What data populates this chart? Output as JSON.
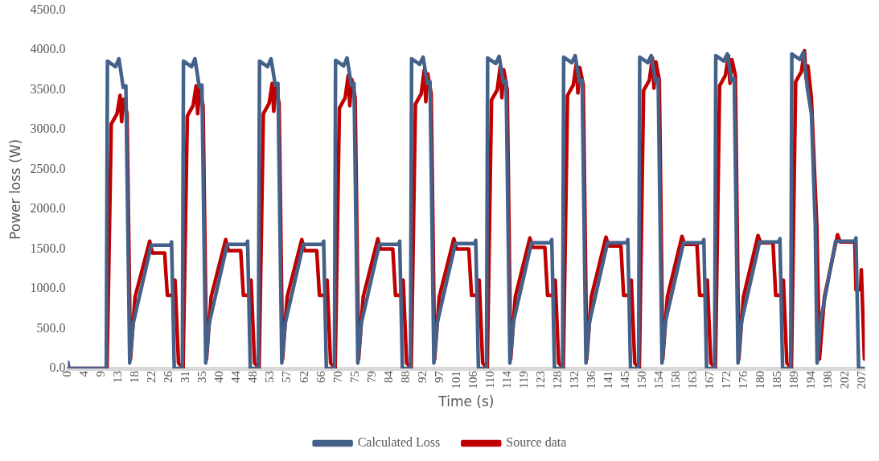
{
  "chart_data": {
    "type": "line",
    "xlabel": "Time (s)",
    "ylabel": "Power loss (W)",
    "legend": "bottom",
    "grid": false,
    "xlim": [
      0,
      207.5
    ],
    "ylim": [
      0,
      4500
    ],
    "xticks": [
      {
        "value": 0,
        "label": "0"
      },
      {
        "value": 4.4,
        "label": "4"
      },
      {
        "value": 8.8,
        "label": "9"
      },
      {
        "value": 13.2,
        "label": "13"
      },
      {
        "value": 17.6,
        "label": "18"
      },
      {
        "value": 22,
        "label": "22"
      },
      {
        "value": 26.4,
        "label": "26"
      },
      {
        "value": 30.8,
        "label": "31"
      },
      {
        "value": 35.2,
        "label": "35"
      },
      {
        "value": 39.6,
        "label": "40"
      },
      {
        "value": 44,
        "label": "44"
      },
      {
        "value": 48.4,
        "label": "48"
      },
      {
        "value": 52.8,
        "label": "53"
      },
      {
        "value": 57.2,
        "label": "57"
      },
      {
        "value": 61.6,
        "label": "62"
      },
      {
        "value": 66,
        "label": "66"
      },
      {
        "value": 70.4,
        "label": "70"
      },
      {
        "value": 74.8,
        "label": "75"
      },
      {
        "value": 79.2,
        "label": "79"
      },
      {
        "value": 83.6,
        "label": "84"
      },
      {
        "value": 88,
        "label": "88"
      },
      {
        "value": 92.4,
        "label": "92"
      },
      {
        "value": 96.8,
        "label": "97"
      },
      {
        "value": 101.2,
        "label": "101"
      },
      {
        "value": 105.6,
        "label": "106"
      },
      {
        "value": 110,
        "label": "110"
      },
      {
        "value": 114.4,
        "label": "114"
      },
      {
        "value": 118.8,
        "label": "119"
      },
      {
        "value": 123.2,
        "label": "123"
      },
      {
        "value": 127.6,
        "label": "128"
      },
      {
        "value": 132,
        "label": "132"
      },
      {
        "value": 136.4,
        "label": "136"
      },
      {
        "value": 140.8,
        "label": "141"
      },
      {
        "value": 145.2,
        "label": "145"
      },
      {
        "value": 149.6,
        "label": "150"
      },
      {
        "value": 154,
        "label": "154"
      },
      {
        "value": 158.4,
        "label": "158"
      },
      {
        "value": 162.8,
        "label": "163"
      },
      {
        "value": 167.2,
        "label": "167"
      },
      {
        "value": 171.6,
        "label": "172"
      },
      {
        "value": 176,
        "label": "176"
      },
      {
        "value": 180.4,
        "label": "180"
      },
      {
        "value": 184.8,
        "label": "185"
      },
      {
        "value": 189.2,
        "label": "189"
      },
      {
        "value": 193.6,
        "label": "194"
      },
      {
        "value": 198,
        "label": "198"
      },
      {
        "value": 202.4,
        "label": "202"
      },
      {
        "value": 206.8,
        "label": "207"
      }
    ],
    "yticks": [
      {
        "value": 0,
        "label": "0.0"
      },
      {
        "value": 500,
        "label": "500.0"
      },
      {
        "value": 1000,
        "label": "1000.0"
      },
      {
        "value": 1500,
        "label": "1500.0"
      },
      {
        "value": 2000,
        "label": "2000.0"
      },
      {
        "value": 2500,
        "label": "2500.0"
      },
      {
        "value": 3000,
        "label": "3000.0"
      },
      {
        "value": 3500,
        "label": "3500.0"
      },
      {
        "value": 4000,
        "label": "4000.0"
      },
      {
        "value": 4500,
        "label": "4500.0"
      }
    ],
    "series": [
      {
        "name": "Calculated Loss",
        "color": "#44618a",
        "x": [
          0,
          0.3,
          10.0,
          10.3,
          12.4,
          13.3,
          14.4,
          15.1,
          16.1,
          17.0,
          21.7,
          26.7,
          27.0,
          27.7,
          29.8,
          30.1,
          32.2,
          33.1,
          34.2,
          34.9,
          35.9,
          36.8,
          41.5,
          46.5,
          46.8,
          47.5,
          49.6,
          49.9,
          52.0,
          52.9,
          54.0,
          54.7,
          55.7,
          56.6,
          61.3,
          66.3,
          66.6,
          67.3,
          69.4,
          69.7,
          71.8,
          72.7,
          73.8,
          74.5,
          75.5,
          76.4,
          81.1,
          86.1,
          86.4,
          87.1,
          89.2,
          89.5,
          91.6,
          92.5,
          93.6,
          94.3,
          95.3,
          96.2,
          100.9,
          105.9,
          106.2,
          106.9,
          109.0,
          109.3,
          111.4,
          112.3,
          113.4,
          114.1,
          115.1,
          116.0,
          120.7,
          125.7,
          126.0,
          126.7,
          128.8,
          129.1,
          131.2,
          132.1,
          133.2,
          133.9,
          134.9,
          135.8,
          140.5,
          145.5,
          145.8,
          146.5,
          148.6,
          148.9,
          151.0,
          151.9,
          153.0,
          153.7,
          154.7,
          155.6,
          160.3,
          165.3,
          165.6,
          166.3,
          168.4,
          168.7,
          170.8,
          171.7,
          172.8,
          173.5,
          174.5,
          175.4,
          180.1,
          185.1,
          185.4,
          186.1,
          188.2,
          188.5,
          190.6,
          191.5,
          192.6,
          193.6,
          194.6,
          195.1,
          196.0,
          199.9,
          204.9,
          205.2,
          205.9,
          207.5
        ],
        "values": [
          80,
          0,
          0,
          3860,
          3790,
          3890,
          3530,
          3550,
          70,
          565,
          1550,
          1550,
          1590,
          0,
          0,
          3860,
          3790,
          3890,
          3540,
          3560,
          70,
          570,
          1560,
          1560,
          1600,
          0,
          0,
          3860,
          3790,
          3890,
          3560,
          3580,
          70,
          570,
          1560,
          1560,
          1600,
          0,
          0,
          3870,
          3800,
          3900,
          3560,
          3580,
          70,
          570,
          1560,
          1560,
          1600,
          0,
          0,
          3890,
          3820,
          3910,
          3580,
          3600,
          70,
          580,
          1570,
          1570,
          1610,
          0,
          0,
          3900,
          3830,
          3920,
          3590,
          3610,
          70,
          580,
          1580,
          1580,
          1620,
          0,
          0,
          3910,
          3840,
          3930,
          3600,
          3620,
          70,
          580,
          1580,
          1580,
          1620,
          0,
          0,
          3910,
          3840,
          3930,
          3610,
          3630,
          70,
          590,
          1580,
          1580,
          1620,
          0,
          0,
          3930,
          3860,
          3950,
          3620,
          3640,
          70,
          590,
          1590,
          1590,
          1630,
          0,
          0,
          3950,
          3880,
          3970,
          3500,
          3200,
          1800,
          70,
          600,
          1600,
          1600,
          1640,
          0,
          0
        ]
      },
      {
        "name": "Source data",
        "color": "#c00000",
        "x": [
          0,
          10.2,
          11.3,
          12.8,
          13.6,
          14.0,
          14.5,
          15.4,
          16.3,
          17.5,
          21.3,
          22.0,
          25.2,
          25.9,
          27.4,
          27.9,
          28.8,
          30.0,
          31.1,
          32.6,
          33.4,
          33.8,
          34.3,
          35.2,
          36.1,
          37.3,
          41.1,
          41.8,
          45.0,
          45.7,
          47.2,
          47.7,
          48.6,
          49.8,
          50.9,
          52.4,
          53.2,
          53.6,
          54.1,
          55.0,
          55.9,
          57.1,
          60.9,
          61.6,
          64.8,
          65.5,
          67.0,
          67.5,
          68.4,
          69.6,
          70.7,
          72.2,
          73.0,
          73.4,
          73.9,
          74.8,
          75.7,
          76.9,
          80.7,
          81.4,
          84.6,
          85.3,
          86.8,
          87.3,
          88.2,
          89.4,
          90.5,
          92.0,
          92.8,
          93.2,
          93.7,
          94.6,
          95.5,
          96.7,
          100.5,
          101.2,
          104.4,
          105.1,
          106.6,
          107.1,
          108.0,
          109.2,
          110.3,
          111.8,
          112.6,
          113.0,
          113.5,
          114.4,
          115.3,
          116.5,
          120.3,
          121.0,
          124.2,
          124.9,
          126.4,
          126.9,
          127.8,
          129.0,
          130.1,
          131.6,
          132.4,
          132.8,
          133.3,
          134.2,
          135.1,
          136.3,
          140.1,
          140.8,
          144.0,
          144.7,
          146.2,
          146.7,
          147.6,
          148.8,
          149.9,
          151.4,
          152.2,
          152.6,
          153.1,
          154.0,
          154.9,
          156.1,
          159.9,
          160.6,
          163.8,
          164.5,
          166.0,
          166.5,
          167.4,
          168.6,
          169.7,
          171.2,
          172.0,
          172.4,
          172.9,
          173.8,
          174.7,
          175.9,
          179.7,
          180.4,
          183.6,
          184.3,
          185.8,
          186.3,
          187.2,
          188.4,
          189.5,
          191.0,
          191.8,
          192.2,
          192.7,
          193.6,
          195.0,
          195.7,
          197.0,
          200.4,
          201.1,
          204.9,
          205.2,
          206.4,
          206.6,
          207.4
        ],
        "values": [
          0,
          0,
          3070,
          3200,
          3430,
          3100,
          3380,
          3200,
          120,
          900,
          1600,
          1450,
          1450,
          920,
          920,
          1110,
          70,
          0,
          3170,
          3300,
          3550,
          3200,
          3500,
          3300,
          120,
          900,
          1620,
          1480,
          1480,
          920,
          920,
          1110,
          70,
          0,
          3200,
          3330,
          3580,
          3230,
          3530,
          3330,
          120,
          900,
          1620,
          1480,
          1480,
          920,
          920,
          1110,
          70,
          0,
          3270,
          3400,
          3680,
          3300,
          3630,
          3400,
          120,
          900,
          1630,
          1500,
          1500,
          920,
          920,
          1110,
          70,
          0,
          3320,
          3450,
          3750,
          3350,
          3700,
          3450,
          120,
          900,
          1630,
          1500,
          1500,
          920,
          920,
          1110,
          70,
          0,
          3370,
          3500,
          3800,
          3400,
          3750,
          3500,
          120,
          900,
          1640,
          1520,
          1520,
          920,
          920,
          1110,
          70,
          0,
          3430,
          3560,
          3830,
          3460,
          3780,
          3560,
          120,
          900,
          1650,
          1540,
          1540,
          920,
          920,
          1110,
          70,
          0,
          3490,
          3620,
          3900,
          3520,
          3850,
          3620,
          120,
          900,
          1660,
          1560,
          1560,
          920,
          920,
          1110,
          70,
          0,
          3550,
          3680,
          3930,
          3580,
          3880,
          3680,
          120,
          900,
          1670,
          1580,
          1580,
          920,
          920,
          1110,
          70,
          0,
          3600,
          3730,
          3990,
          3640,
          3800,
          3400,
          1800,
          120,
          900,
          1680,
          1590,
          1590,
          990,
          990,
          1240,
          120
        ]
      }
    ]
  }
}
